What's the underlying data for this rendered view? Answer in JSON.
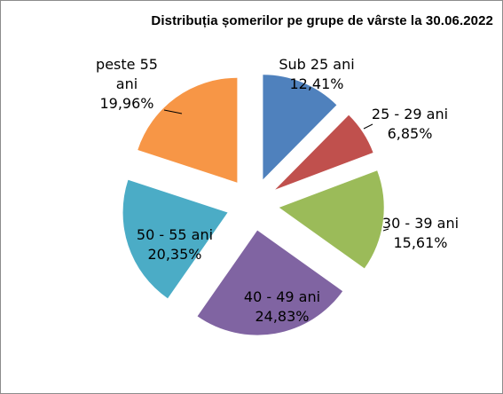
{
  "chart_data": {
    "type": "pie",
    "title": "Distribuția șomerilor pe grupe de vârste la 30.06.2022",
    "categories": [
      "Sub 25 ani",
      "25 - 29 ani",
      "30 - 39 ani",
      "40 - 49 ani",
      "50 - 55 ani",
      "peste 55 ani"
    ],
    "values": [
      12.41,
      6.85,
      15.61,
      24.83,
      20.35,
      19.96
    ],
    "value_labels": [
      "12,41%",
      "6,85%",
      "15,61%",
      "24,83%",
      "20,35%",
      "19,96%"
    ],
    "exploded": true,
    "colors": [
      "#4f81bd",
      "#c0504d",
      "#9bbb59",
      "#8064a2",
      "#4bacc6",
      "#f79646"
    ]
  }
}
